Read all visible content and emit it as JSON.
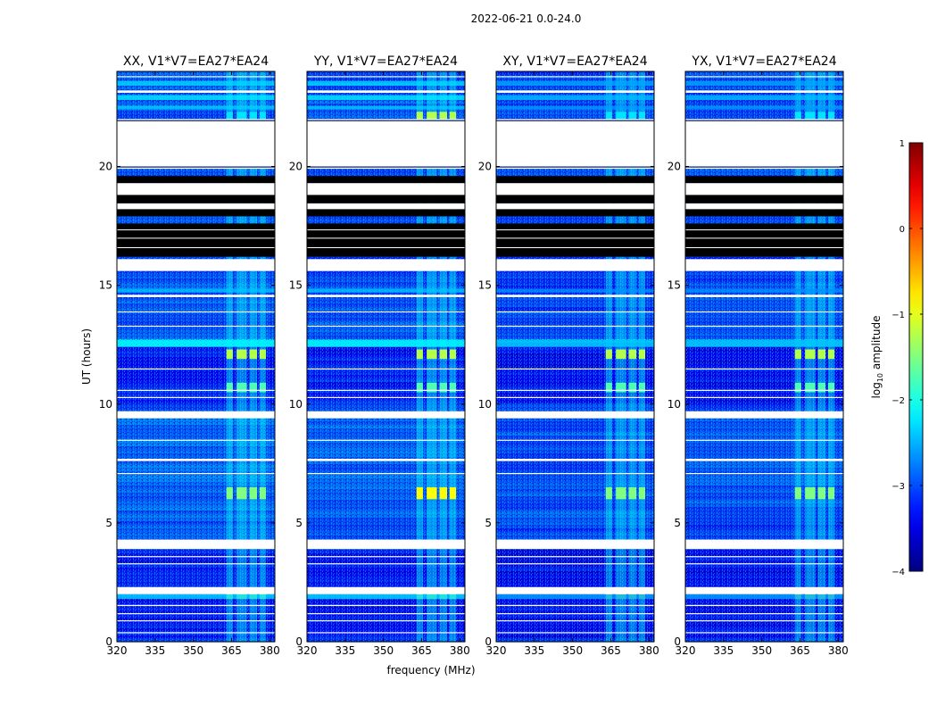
{
  "suptitle": "2022-06-21 0.0-24.0",
  "chart_data": {
    "type": "heatmap",
    "title": "2022-06-21 0.0-24.0",
    "xlabel": "frequency (MHz)",
    "ylabel": "UT (hours)",
    "xlim": [
      320,
      382
    ],
    "ylim": [
      0,
      24
    ],
    "x_ticks": [
      320,
      335,
      350,
      365,
      380
    ],
    "y_ticks": [
      0,
      5,
      10,
      15,
      20
    ],
    "panels": [
      {
        "name": "XX",
        "title": "XX, V1*V7=EA27*EA24",
        "show_ylabel": true,
        "show_xlabel": false
      },
      {
        "name": "YY",
        "title": "YY, V1*V7=EA27*EA24",
        "show_ylabel": false,
        "show_xlabel": true
      },
      {
        "name": "XY",
        "title": "XY, V1*V7=EA27*EA24",
        "show_ylabel": false,
        "show_xlabel": false
      },
      {
        "name": "YX",
        "title": "YX, V1*V7=EA27*EA24",
        "show_ylabel": false,
        "show_xlabel": false
      }
    ],
    "colorbar": {
      "label_prefix": "log",
      "label_sub": "10",
      "label_suffix": " amplitude",
      "range": [
        -4,
        1
      ],
      "ticks": [
        "1",
        "0",
        "−1",
        "−2",
        "−3",
        "−4"
      ],
      "colormap": "jet"
    },
    "flagged_white_hours": [
      [
        19.9,
        22.0
      ],
      [
        18.8,
        19.3
      ],
      [
        18.2,
        18.45
      ],
      [
        15.6,
        16.1
      ],
      [
        9.4,
        9.7
      ],
      [
        3.9,
        4.3
      ],
      [
        2.0,
        2.3
      ],
      [
        1.5,
        1.55
      ],
      [
        14.5,
        14.6
      ],
      [
        7.6,
        7.7
      ],
      [
        23.1,
        23.2
      ]
    ],
    "flagged_black_hours": [
      [
        16.2,
        17.6
      ],
      [
        19.3,
        19.6
      ],
      [
        18.45,
        18.8
      ],
      [
        17.9,
        18.2
      ]
    ],
    "rfi_channels_mhz": [
      {
        "from": 363,
        "to": 365.5
      },
      {
        "from": 367,
        "to": 371
      },
      {
        "from": 372,
        "to": 375
      },
      {
        "from": 376,
        "to": 378.5
      }
    ]
  }
}
